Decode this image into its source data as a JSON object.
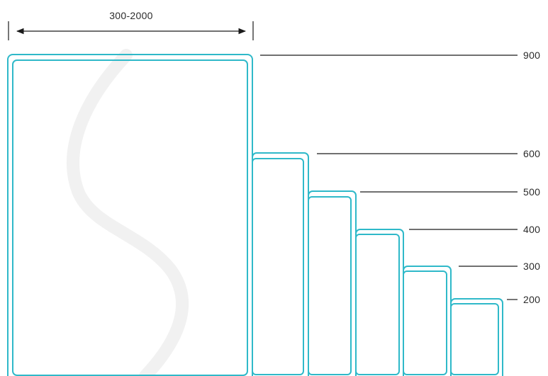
{
  "diagram": {
    "width_label": "300-2000",
    "heights": [
      {
        "id": "h900",
        "label": "900"
      },
      {
        "id": "h600",
        "label": "600"
      },
      {
        "id": "h500",
        "label": "500"
      },
      {
        "id": "h400",
        "label": "400"
      },
      {
        "id": "h300",
        "label": "300"
      },
      {
        "id": "h200",
        "label": "200"
      }
    ],
    "colors": {
      "frame_stroke": "#2fb9c9",
      "dimension_lines": "#1a1a1a",
      "text": "#2b2b2b",
      "watermark": "#f1f1f1"
    },
    "watermark_icon": "s-curve-watermark"
  }
}
